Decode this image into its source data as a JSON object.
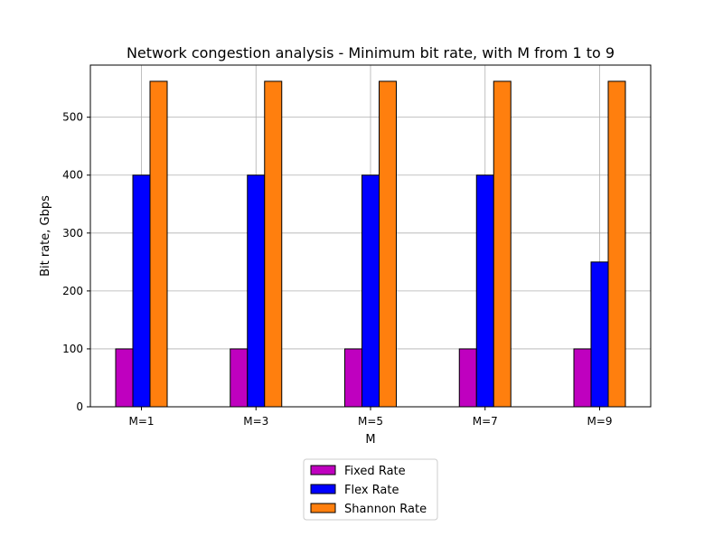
{
  "chart_data": {
    "type": "bar",
    "title": "Network congestion analysis - Minimum bit rate, with M from 1 to 9",
    "xlabel": "M",
    "ylabel": "Bit rate, Gbps",
    "categories": [
      "M=1",
      "M=3",
      "M=5",
      "M=7",
      "M=9"
    ],
    "series": [
      {
        "name": "Fixed Rate",
        "color": "#bf00bf",
        "values": [
          100,
          100,
          100,
          100,
          100
        ]
      },
      {
        "name": "Flex Rate",
        "color": "#0000ff",
        "values": [
          400,
          400,
          400,
          400,
          250
        ]
      },
      {
        "name": "Shannon Rate",
        "color": "#ff7f0e",
        "values": [
          562,
          562,
          562,
          562,
          562
        ]
      }
    ],
    "ylim": [
      0,
      590
    ],
    "yticks": [
      0,
      100,
      200,
      300,
      400,
      500
    ],
    "grid": true,
    "legend_position": "bottom-center"
  }
}
